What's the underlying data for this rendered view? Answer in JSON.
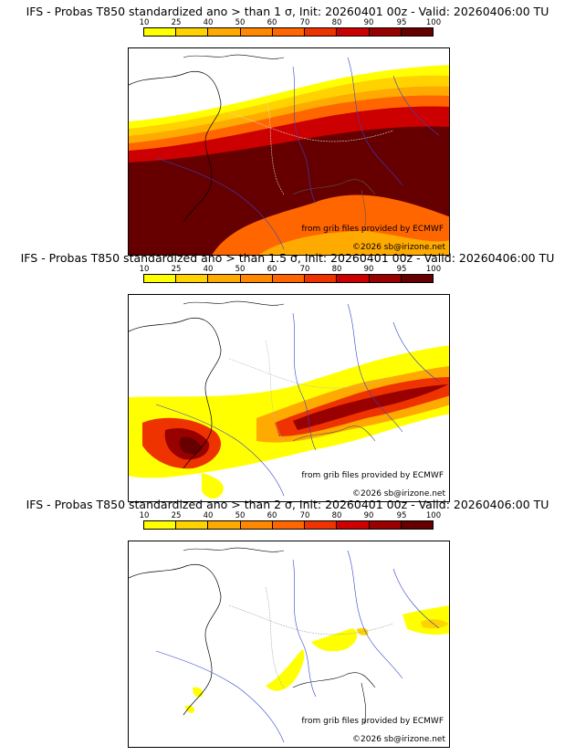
{
  "colorbar": {
    "ticks": [
      "10",
      "25",
      "40",
      "50",
      "60",
      "70",
      "80",
      "90",
      "95",
      "100"
    ],
    "colors": [
      "#ffff00",
      "#ffd200",
      "#ffaa00",
      "#ff8800",
      "#ff6600",
      "#ee3300",
      "#cc0000",
      "#990000",
      "#660000"
    ]
  },
  "panels": [
    {
      "title": "IFS - Probas T850  standardized ano > than 1 σ, Init: 20260401 00z - Valid: 20260406:00 TU",
      "credit": "from grib files provided by ECMWF",
      "copyright": "©2026 sb@irizone.net"
    },
    {
      "title": "IFS - Probas T850  standardized ano > than 1.5 σ, Init: 20260401 00z - Valid: 20260406:00 TU",
      "credit": "from grib files provided by ECMWF",
      "copyright": "©2026 sb@irizone.net"
    },
    {
      "title": "IFS - Probas T850  standardized ano > than 2 σ, Init: 20260401 00z - Valid: 20260406:00 TU",
      "credit": "from grib files provided by ECMWF",
      "copyright": "©2026 sb@irizone.net"
    }
  ]
}
